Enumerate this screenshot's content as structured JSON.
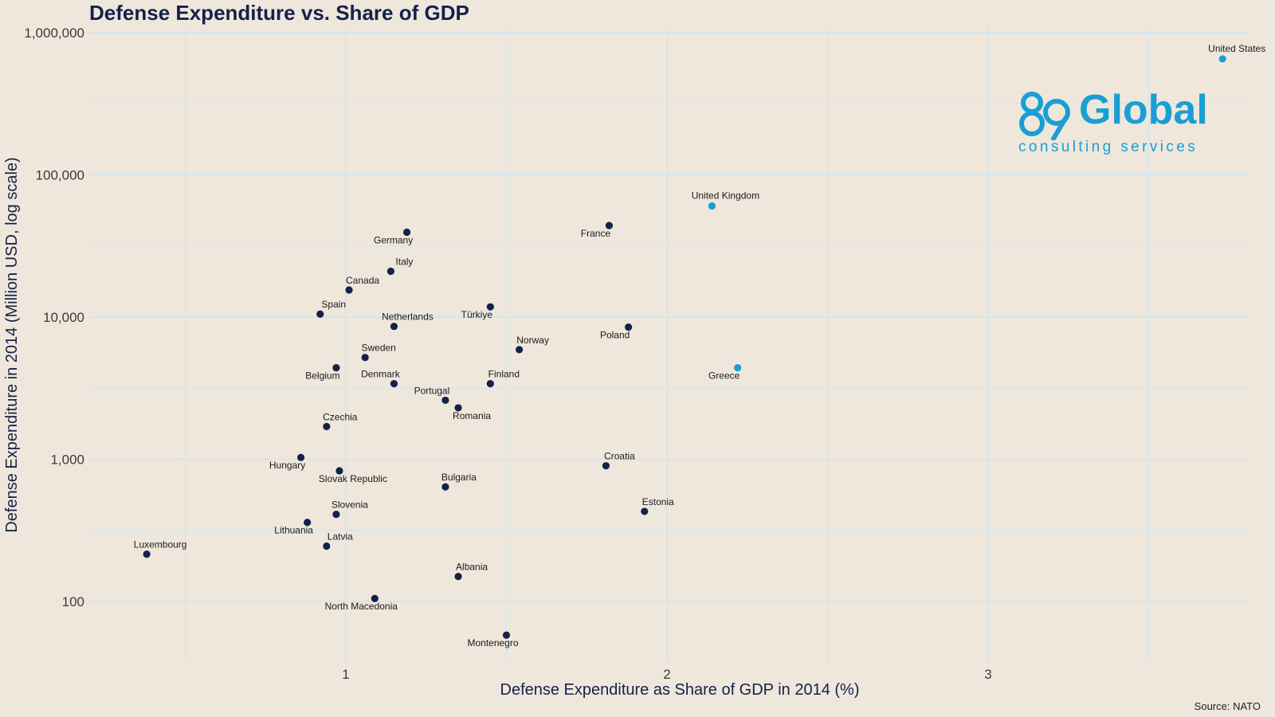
{
  "chart_data": {
    "type": "scatter",
    "title": "Defense Expenditure vs. Share of GDP",
    "xlabel": "Defense Expenditure as Share of GDP in 2014 (%)",
    "ylabel": "Defense Expenditure in 2014 (Million USD, log scale)",
    "xscale": "linear",
    "yscale": "log",
    "xlim": [
      0.22,
      3.82
    ],
    "ylim": [
      40,
      1000000
    ],
    "xticks": [
      1,
      2,
      3
    ],
    "yticks": [
      100,
      1000,
      10000,
      100000,
      1000000
    ],
    "ytick_labels": [
      "100",
      "1,000",
      "10,000",
      "100,000",
      "1,000,000"
    ],
    "grid": true,
    "colors": {
      "default_point": "#14214a",
      "highlight_point": "#1a9fd4",
      "grid": "#cce6f2",
      "background": "#efe7dc"
    },
    "points": [
      {
        "label": "United States",
        "x": 3.73,
        "y": 654000,
        "highlight": true
      },
      {
        "label": "United Kingdom",
        "x": 2.14,
        "y": 60500,
        "highlight": true
      },
      {
        "label": "Greece",
        "x": 2.22,
        "y": 4400,
        "highlight": true
      },
      {
        "label": "France",
        "x": 1.82,
        "y": 44000,
        "highlight": false
      },
      {
        "label": "Germany",
        "x": 1.19,
        "y": 39500,
        "highlight": false
      },
      {
        "label": "Italy",
        "x": 1.14,
        "y": 21000,
        "highlight": false
      },
      {
        "label": "Canada",
        "x": 1.01,
        "y": 15500,
        "highlight": false
      },
      {
        "label": "Spain",
        "x": 0.92,
        "y": 10500,
        "highlight": false
      },
      {
        "label": "Türkiye",
        "x": 1.45,
        "y": 11800,
        "highlight": false
      },
      {
        "label": "Netherlands",
        "x": 1.15,
        "y": 8600,
        "highlight": false
      },
      {
        "label": "Poland",
        "x": 1.88,
        "y": 8500,
        "highlight": false
      },
      {
        "label": "Norway",
        "x": 1.54,
        "y": 5900,
        "highlight": false
      },
      {
        "label": "Sweden",
        "x": 1.06,
        "y": 5200,
        "highlight": false
      },
      {
        "label": "Belgium",
        "x": 0.97,
        "y": 4400,
        "highlight": false
      },
      {
        "label": "Denmark",
        "x": 1.15,
        "y": 3400,
        "highlight": false
      },
      {
        "label": "Finland",
        "x": 1.45,
        "y": 3400,
        "highlight": false
      },
      {
        "label": "Portugal",
        "x": 1.31,
        "y": 2600,
        "highlight": false
      },
      {
        "label": "Romania",
        "x": 1.35,
        "y": 2300,
        "highlight": false
      },
      {
        "label": "Czechia",
        "x": 0.94,
        "y": 1700,
        "highlight": false
      },
      {
        "label": "Hungary",
        "x": 0.86,
        "y": 1030,
        "highlight": false
      },
      {
        "label": "Croatia",
        "x": 1.81,
        "y": 900,
        "highlight": false
      },
      {
        "label": "Slovak Republic",
        "x": 0.98,
        "y": 830,
        "highlight": false
      },
      {
        "label": "Bulgaria",
        "x": 1.31,
        "y": 640,
        "highlight": false
      },
      {
        "label": "Estonia",
        "x": 1.93,
        "y": 430,
        "highlight": false
      },
      {
        "label": "Slovenia",
        "x": 0.97,
        "y": 410,
        "highlight": false
      },
      {
        "label": "Lithuania",
        "x": 0.88,
        "y": 360,
        "highlight": false
      },
      {
        "label": "Latvia",
        "x": 0.94,
        "y": 245,
        "highlight": false
      },
      {
        "label": "Luxembourg",
        "x": 0.38,
        "y": 215,
        "highlight": false
      },
      {
        "label": "Albania",
        "x": 1.35,
        "y": 150,
        "highlight": false
      },
      {
        "label": "North Macedonia",
        "x": 1.09,
        "y": 105,
        "highlight": false
      },
      {
        "label": "Montenegro",
        "x": 1.5,
        "y": 58,
        "highlight": false
      }
    ]
  },
  "logo": {
    "word": "Global",
    "tagline": "consulting services"
  },
  "source": "Source: NATO"
}
